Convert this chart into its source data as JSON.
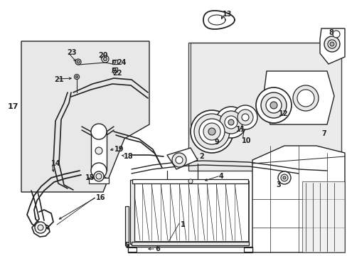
{
  "bg_color": "#ffffff",
  "line_color": "#222222",
  "fill_light": "#e8e8e8",
  "fill_medium": "#b8b8b8",
  "figsize": [
    4.89,
    3.6
  ],
  "dpi": 100,
  "label_positions": {
    "1": [
      252,
      314,
      "left"
    ],
    "2": [
      246,
      196,
      "left"
    ],
    "3": [
      386,
      258,
      "left"
    ],
    "4": [
      306,
      249,
      "left"
    ],
    "5": [
      178,
      342,
      "center"
    ],
    "6": [
      214,
      348,
      "left"
    ],
    "7": [
      450,
      185,
      "left"
    ],
    "8": [
      461,
      45,
      "left"
    ],
    "9": [
      302,
      198,
      "left"
    ],
    "10": [
      337,
      195,
      "left"
    ],
    "11": [
      330,
      180,
      "left"
    ],
    "12": [
      390,
      158,
      "left"
    ],
    "13": [
      311,
      18,
      "left"
    ],
    "14": [
      73,
      228,
      "left"
    ],
    "15": [
      118,
      248,
      "left"
    ],
    "16": [
      133,
      276,
      "left"
    ],
    "17": [
      12,
      148,
      "left"
    ],
    "18": [
      172,
      218,
      "left"
    ],
    "19": [
      159,
      208,
      "left"
    ],
    "20": [
      138,
      78,
      "left"
    ],
    "21": [
      78,
      112,
      "left"
    ],
    "22": [
      158,
      101,
      "left"
    ],
    "23": [
      96,
      75,
      "left"
    ],
    "24": [
      164,
      87,
      "left"
    ]
  }
}
